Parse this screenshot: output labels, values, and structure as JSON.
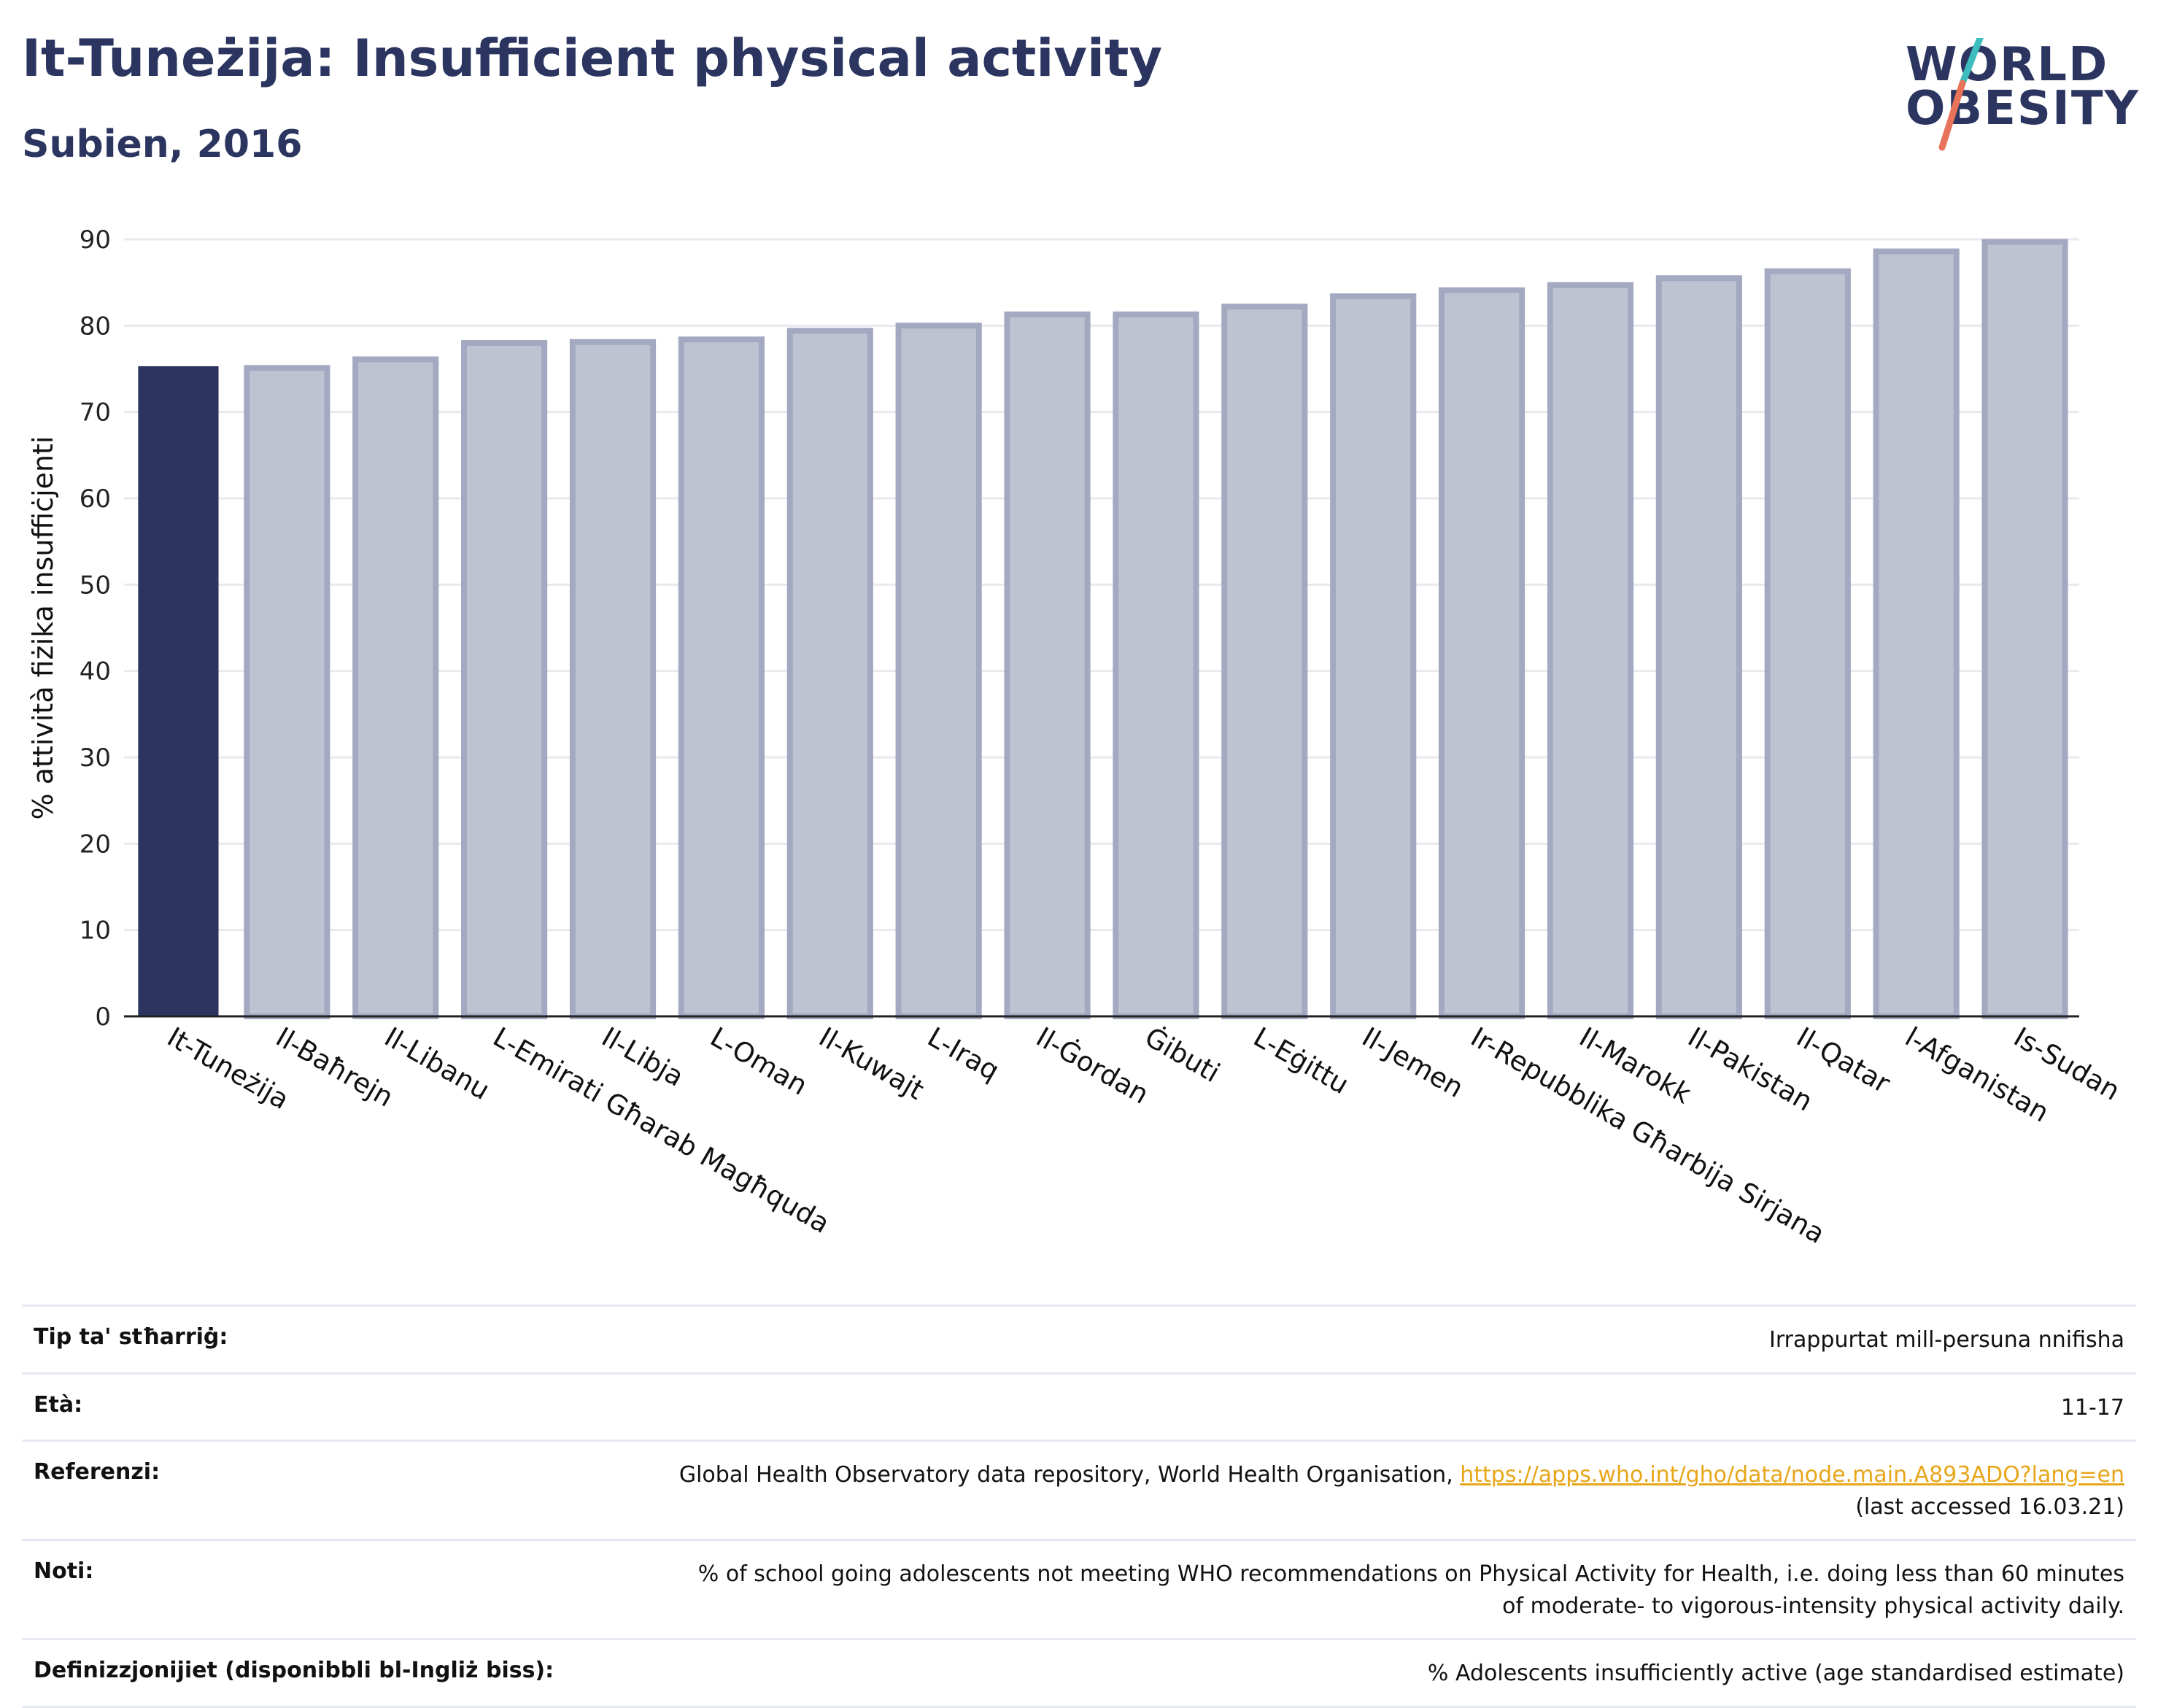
{
  "header": {
    "title": "It-Tuneżija: Insufficient physical activity",
    "subtitle": "Subien, 2016"
  },
  "logo": {
    "line1": "WORLD",
    "line2": "OBESITY",
    "accent_teal": "#3dbdbd",
    "accent_coral": "#e8735a"
  },
  "colors": {
    "highlight_bar": "#2b3560",
    "other_bar_fill": "#bfc3d1",
    "other_bar_stroke": "#a3a9c1",
    "grid": "#e9e9ef",
    "text": "#2b3560"
  },
  "chart_data": {
    "type": "bar",
    "title": "It-Tuneżija: Insufficient physical activity",
    "subtitle": "Subien, 2016",
    "xlabel": "",
    "ylabel": "% attività fiżika insuffiċjenti",
    "ylim": [
      0,
      90
    ],
    "yticks": [
      0,
      10,
      20,
      30,
      40,
      50,
      60,
      70,
      80,
      90
    ],
    "grid": true,
    "highlight": "It-Tuneżija",
    "categories": [
      "It-Tuneżija",
      "Il-Baħrejn",
      "Il-Libanu",
      "L-Emirati Għarab Magħquda",
      "Il-Libja",
      "L-Oman",
      "Il-Kuwajt",
      "L-Iraq",
      "Il-Ġordan",
      "Ġibuti",
      "L-Eġittu",
      "Il-Jemen",
      "Ir-Repubblika Għarbija Sirjana",
      "Il-Marokk",
      "Il-Pakistan",
      "Il-Qatar",
      "l-Afganistan",
      "Is-Sudan"
    ],
    "values": [
      75.3,
      75.1,
      76.1,
      78.0,
      78.1,
      78.4,
      79.4,
      80.0,
      81.3,
      81.3,
      82.2,
      83.4,
      84.1,
      84.7,
      85.5,
      86.3,
      88.6,
      89.7
    ]
  },
  "meta": {
    "rows": [
      {
        "label": "Tip ta' stħarriġ:",
        "value": "Irrappurtat mill-persuna nnifisha"
      },
      {
        "label": "Età:",
        "value": "11-17"
      },
      {
        "label": "Referenzi:",
        "value": "Global Health Observatory data repository, World Health Organisation, ",
        "link": "https://apps.who.int/gho/data/node.main.A893ADO?lang=en",
        "value_after": "(last accessed 16.03.21)"
      },
      {
        "label": "Noti:",
        "value": "% of school going adolescents not meeting WHO recommendations on Physical Activity for Health, i.e. doing less than 60 minutes of moderate- to vigorous-intensity physical activity daily."
      },
      {
        "label": "Definizzjonijiet (disponibbli bl-Ingliż biss):",
        "value": "% Adolescents insufficiently active (age standardised estimate)"
      }
    ]
  }
}
